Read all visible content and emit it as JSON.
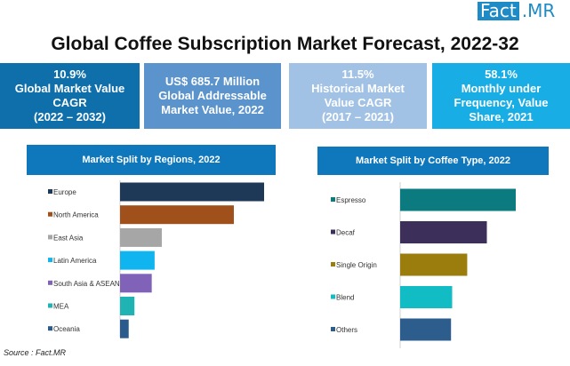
{
  "logo": {
    "part1": "Fact",
    "part2": ".MR"
  },
  "title": "Global Coffee Subscription Market Forecast, 2022-32",
  "kpis": [
    {
      "lines": [
        "10.9%",
        "Global Market Value",
        "CAGR",
        "(2022 – 2032)"
      ],
      "color": "#0f6fab"
    },
    {
      "lines": [
        "US$ 685.7 Million",
        "Global Addressable",
        "Market Value, 2022"
      ],
      "color": "#5b93cc"
    },
    {
      "lines": [
        "11.5%",
        "Historical Market",
        "Value CAGR",
        "(2017 – 2021)"
      ],
      "color": "#a2c2e5"
    },
    {
      "lines": [
        "58.1%",
        "Monthly under",
        "Frequency, Value",
        "Share, 2021"
      ],
      "color": "#19ade5"
    }
  ],
  "source": "Source : Fact.MR",
  "chart_data": [
    {
      "type": "bar",
      "orientation": "horizontal",
      "title": "Market Split by Regions, 2022",
      "categories": [
        "Europe",
        "North America",
        "East Asia",
        "Latin America",
        "South Asia & ASEAN",
        "MEA",
        "Oceania"
      ],
      "values": [
        100,
        79,
        29,
        24,
        22,
        10,
        6
      ],
      "colors": [
        "#1e3857",
        "#a0501a",
        "#a6a6a6",
        "#10b5ef",
        "#8063b8",
        "#20b3b3",
        "#2b5a8d"
      ],
      "value_axis_shown": false
    },
    {
      "type": "bar",
      "orientation": "horizontal",
      "title": "Market Split by Coffee Type, 2022",
      "categories": [
        "Espresso",
        "Decaf",
        "Single Origin",
        "Blend",
        "Others"
      ],
      "values": [
        100,
        75,
        58,
        45,
        44
      ],
      "colors": [
        "#0b7b80",
        "#3c2f59",
        "#9a7d0c",
        "#12bcc4",
        "#2c5d8d"
      ],
      "value_axis_shown": false
    }
  ]
}
